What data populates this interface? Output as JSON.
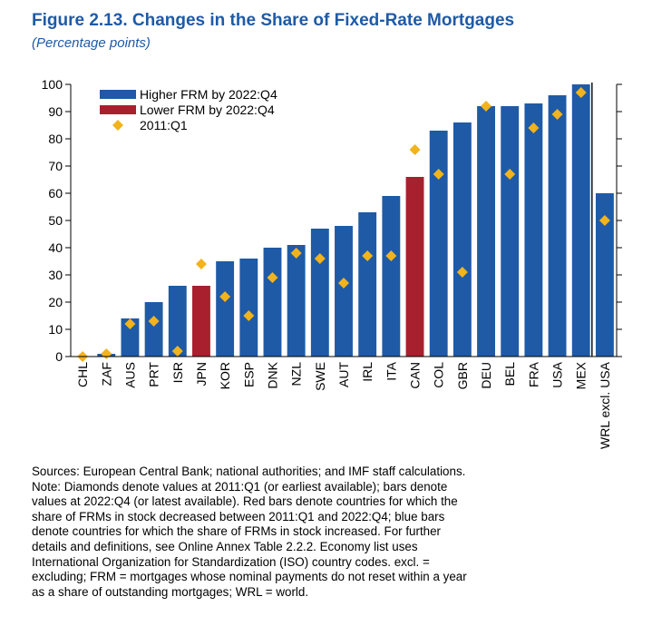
{
  "figure": {
    "title": "Figure 2.13.  Changes in the Share of Fixed-Rate Mortgages",
    "subtitle": "(Percentage points)"
  },
  "colors": {
    "title": "#1f5aa6",
    "higher": "#1f5aa6",
    "lower": "#a8202e",
    "diamond": "#f2b31c"
  },
  "chart_data": {
    "type": "bar",
    "categories": [
      "CHL",
      "ZAF",
      "AUS",
      "PRT",
      "ISR",
      "JPN",
      "KOR",
      "ESP",
      "DNK",
      "NZL",
      "SWE",
      "AUT",
      "IRL",
      "ITA",
      "CAN",
      "COL",
      "GBR",
      "DEU",
      "BEL",
      "FRA",
      "USA",
      "MEX",
      "WRL excl. USA"
    ],
    "series": [
      {
        "name": "Higher FRM by 2022:Q4",
        "type": "bar",
        "values": [
          0,
          1,
          14,
          20,
          26,
          null,
          35,
          36,
          40,
          41,
          47,
          48,
          53,
          59,
          null,
          83,
          86,
          92,
          92,
          93,
          96,
          100,
          60
        ]
      },
      {
        "name": "Lower FRM by 2022:Q4",
        "type": "bar",
        "values": [
          null,
          null,
          null,
          null,
          null,
          26,
          null,
          null,
          null,
          null,
          null,
          null,
          null,
          null,
          66,
          null,
          null,
          null,
          null,
          null,
          null,
          null,
          null
        ]
      },
      {
        "name": "2011:Q1",
        "type": "scatter",
        "marker": "diamond",
        "values": [
          0,
          1,
          12,
          13,
          2,
          34,
          22,
          15,
          29,
          38,
          36,
          27,
          37,
          37,
          76,
          67,
          31,
          92,
          67,
          84,
          89,
          97,
          50
        ]
      }
    ],
    "ylim": [
      0,
      100
    ],
    "yticks": [
      0,
      10,
      20,
      30,
      40,
      50,
      60,
      70,
      80,
      90,
      100
    ],
    "xlabel": "",
    "ylabel": "",
    "grid": false,
    "legend_position": "top-left",
    "separator_before_last": true
  },
  "notes": {
    "lines": [
      "Sources: European Central Bank; national authorities; and IMF staff calculations.",
      "Note: Diamonds denote values at 2011:Q1 (or earliest available); bars denote",
      "values at 2022:Q4 (or latest available). Red bars denote countries for which the",
      "share of FRMs in stock decreased between 2011:Q1 and 2022:Q4; blue bars",
      "denote countries for which the share of FRMs in stock increased. For further",
      "details and definitions, see Online Annex Table 2.2.2. Economy list uses",
      "International Organization for Standardization (ISO) country codes. excl. =",
      "excluding; FRM = mortgages whose nominal payments do not reset within a year",
      "as a share of outstanding mortgages; WRL = world."
    ]
  }
}
